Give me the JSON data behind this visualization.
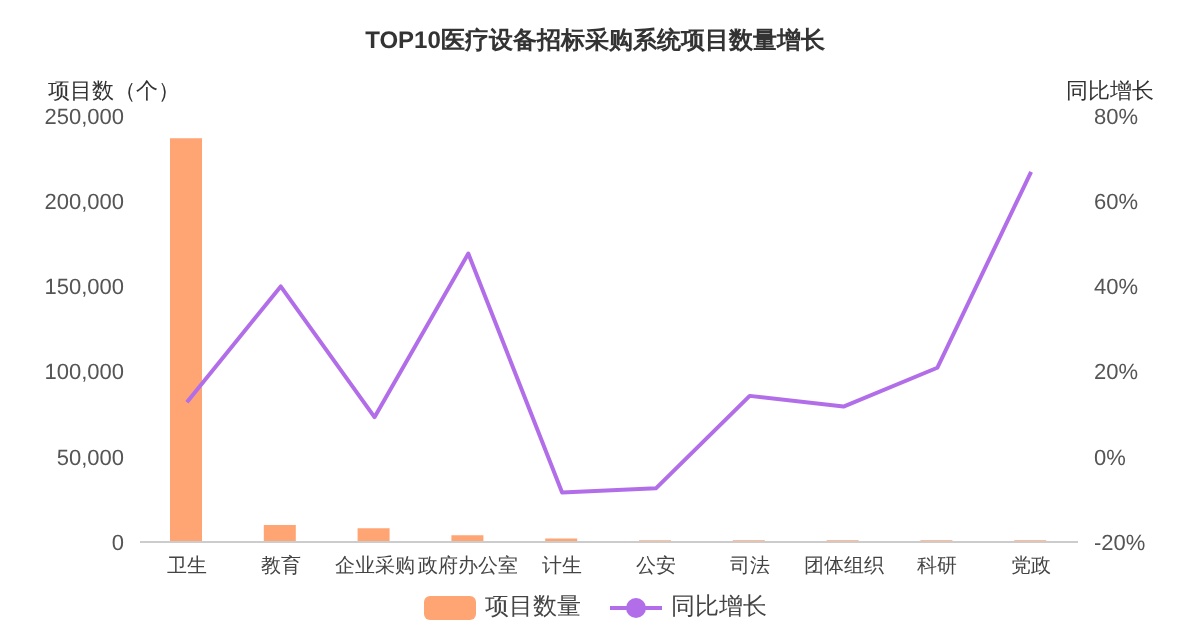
{
  "chart_data": {
    "type": "bar",
    "title": "TOP10医疗设备招标采购系统项目数量增长",
    "ylabel": "项目数（个）",
    "y2label": "同比增长",
    "categories": [
      "卫生",
      "教育",
      "企业采购",
      "政府办公室",
      "计生",
      "公安",
      "司法",
      "团体组织",
      "科研",
      "党政"
    ],
    "series": [
      {
        "name": "项目数量",
        "color": "#ffa574",
        "values": [
          237000,
          10000,
          8000,
          4000,
          2000,
          1000,
          1000,
          1000,
          1000,
          1000
        ]
      },
      {
        "name": "同比增长",
        "type": "line",
        "axis": "y2",
        "color": "#b26ee8",
        "marker": "none",
        "values": [
          12.8,
          40,
          9.3,
          47.7,
          -8.4,
          -7.4,
          14.3,
          11.8,
          20.9,
          66.9
        ]
      }
    ],
    "ylim": [
      0,
      250000
    ],
    "yticks": [
      {
        "value": 0,
        "label": "0"
      },
      {
        "value": 50000,
        "label": "50,000"
      },
      {
        "value": 100000,
        "label": "100,000"
      },
      {
        "value": 150000,
        "label": "150,000"
      },
      {
        "value": 200000,
        "label": "200,000"
      },
      {
        "value": 250000,
        "label": "250,000"
      }
    ],
    "y2lim": [
      -20,
      80
    ],
    "y2ticks": [
      {
        "value": -20,
        "label": "-20%"
      },
      {
        "value": 0,
        "label": "0%"
      },
      {
        "value": 20,
        "label": "20%"
      },
      {
        "value": 40,
        "label": "40%"
      },
      {
        "value": 60,
        "label": "60%"
      },
      {
        "value": 80,
        "label": "80%"
      }
    ],
    "legend": "bottom"
  }
}
